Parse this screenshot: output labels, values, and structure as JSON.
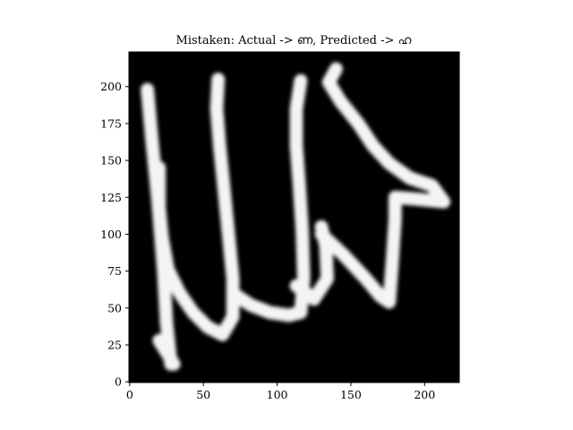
{
  "chart_data": {
    "type": "image",
    "title": "Mistaken: Actual -> ണ, Predicted -> ഹ",
    "xlabel": "",
    "ylabel": "",
    "image_size": [
      224,
      224
    ],
    "xlim": [
      -0.5,
      223.5
    ],
    "ylim": [
      223.5,
      -0.5
    ],
    "x_ticks": [
      0,
      50,
      100,
      150,
      200
    ],
    "y_ticks": [
      0,
      25,
      50,
      75,
      100,
      125,
      150,
      175,
      200
    ],
    "colormap": "gray",
    "background_color": "#000000",
    "stroke_color": "#f4f4f4",
    "strokes": [
      [
        [
          28,
          12
        ],
        [
          25,
          40
        ],
        [
          23,
          75
        ],
        [
          19,
          125
        ],
        [
          15,
          165
        ],
        [
          12,
          198
        ]
      ],
      [
        [
          30,
          12
        ],
        [
          20,
          28
        ]
      ],
      [
        [
          20,
          145
        ],
        [
          20,
          118
        ],
        [
          22,
          98
        ],
        [
          26,
          76
        ],
        [
          34,
          60
        ],
        [
          43,
          47
        ],
        [
          53,
          37
        ],
        [
          63,
          32
        ],
        [
          70,
          44
        ],
        [
          70,
          70
        ],
        [
          67,
          100
        ],
        [
          64,
          130
        ],
        [
          61,
          160
        ],
        [
          59,
          185
        ],
        [
          60,
          205
        ]
      ],
      [
        [
          70,
          60
        ],
        [
          82,
          52
        ],
        [
          95,
          47
        ],
        [
          108,
          45
        ],
        [
          116,
          47
        ],
        [
          118,
          70
        ],
        [
          117,
          102
        ],
        [
          115,
          133
        ],
        [
          113,
          160
        ],
        [
          113,
          185
        ],
        [
          116,
          204
        ]
      ],
      [
        [
          113,
          65
        ],
        [
          125,
          56
        ],
        [
          134,
          70
        ],
        [
          133,
          92
        ],
        [
          130,
          105
        ]
      ],
      [
        [
          130,
          100
        ],
        [
          145,
          86
        ],
        [
          160,
          70
        ],
        [
          170,
          58
        ],
        [
          176,
          54
        ],
        [
          178,
          80
        ],
        [
          180,
          110
        ],
        [
          180,
          125
        ],
        [
          192,
          124
        ],
        [
          213,
          122
        ],
        [
          205,
          133
        ],
        [
          190,
          138
        ],
        [
          176,
          148
        ],
        [
          165,
          160
        ],
        [
          155,
          175
        ],
        [
          143,
          190
        ],
        [
          135,
          203
        ],
        [
          140,
          212
        ]
      ]
    ]
  }
}
